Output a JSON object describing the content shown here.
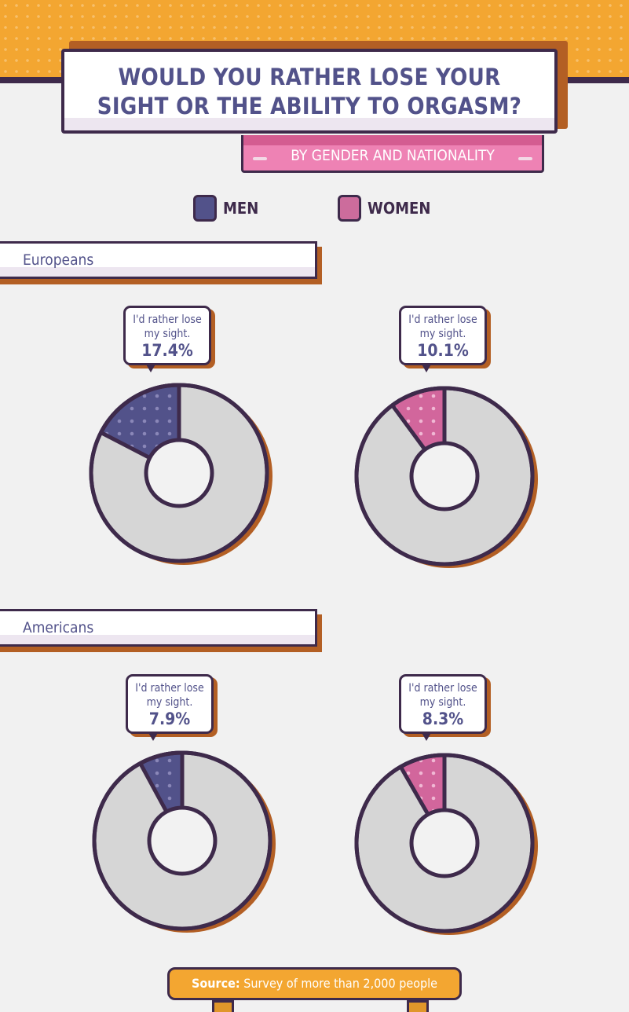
{
  "header": {
    "title_line1": "WOULD YOU RATHER LOSE YOUR",
    "title_line2": "SIGHT OR THE ABILITY TO ORGASM?",
    "subtitle": "BY GENDER AND NATIONALITY"
  },
  "colors": {
    "men": "#52528a",
    "women": "#d2669c",
    "rest": "#d6d6d6",
    "outline": "#3e2a4b",
    "shadow": "#b35f24",
    "accent": "#f3a631"
  },
  "chart_data": {
    "type": "pie",
    "variant": "donut",
    "legend": [
      {
        "name": "MEN",
        "color": "#52528a"
      },
      {
        "name": "WOMEN",
        "color": "#d2669c"
      }
    ],
    "legend_position": "top",
    "question_label": "I'd rather lose my sight.",
    "groups": [
      {
        "name": "Europeans",
        "men": 17.4,
        "women": 10.1,
        "men_label": "17.4%",
        "women_label": "10.1%"
      },
      {
        "name": "Americans",
        "men": 7.9,
        "women": 8.3,
        "men_label": "7.9%",
        "women_label": "8.3%"
      }
    ]
  },
  "bubble": {
    "line1": "I'd rather lose",
    "line2": "my sight."
  },
  "source": {
    "prefix": "Source:",
    "text": " Survey of more than 2,000 people"
  }
}
